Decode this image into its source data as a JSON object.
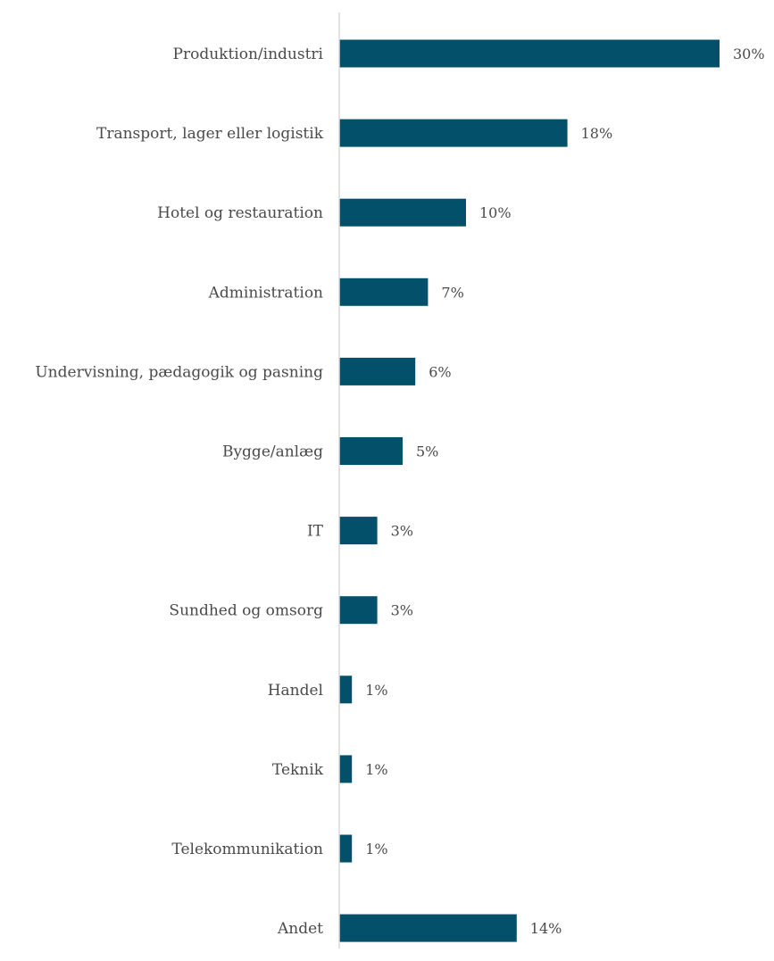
{
  "chart_data": {
    "type": "bar",
    "orientation": "horizontal",
    "categories": [
      "Produktion/industri",
      "Transport, lager eller logistik",
      "Hotel og restauration",
      "Administration",
      "Undervisning, pædagogik og pasning",
      "Bygge/anlæg",
      "IT",
      "Sundhed og omsorg",
      "Handel",
      "Teknik",
      "Telekommunikation",
      "Andet"
    ],
    "values": [
      30,
      18,
      10,
      7,
      6,
      5,
      3,
      3,
      1,
      1,
      1,
      14
    ],
    "value_labels": [
      "30%",
      "18%",
      "10%",
      "7%",
      "6%",
      "5%",
      "3%",
      "3%",
      "1%",
      "1%",
      "1%",
      "14%"
    ],
    "unit": "%",
    "xlim": [
      0,
      30
    ],
    "grid": false,
    "legend": "none",
    "bar_color": "#03506b",
    "axis_color": "#d9d9d9"
  }
}
